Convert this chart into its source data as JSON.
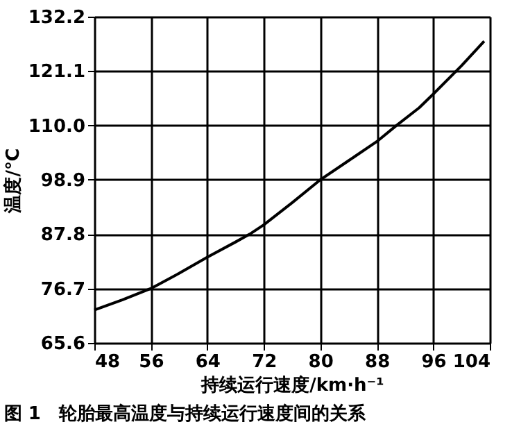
{
  "chart_data": {
    "type": "line",
    "xlabel": "持续运行速度/km·h⁻¹",
    "ylabel": "温度/℃",
    "annotations": [
      "图 1　轮胎最高温度与持续运行速度间的关系"
    ],
    "x": [
      48,
      52,
      56,
      60,
      64,
      68,
      70,
      72,
      76,
      80,
      84,
      88,
      90.8,
      94,
      96,
      100,
      103.2
    ],
    "series": [
      {
        "color": "#000000",
        "values": [
          72.3,
          74.4,
          76.7,
          79.8,
          83.1,
          86.2,
          87.8,
          89.7,
          94.2,
          98.9,
          102.8,
          106.7,
          110.0,
          113.6,
          116.4,
          122.2,
          127.2
        ]
      }
    ],
    "xlim": [
      48,
      104
    ],
    "xticks": [
      48,
      56,
      64,
      72,
      80,
      88,
      96,
      104
    ],
    "ylim": [
      65.6,
      132.2
    ],
    "yticks": [
      {
        "value": 65.6,
        "label": "65.6"
      },
      {
        "value": 76.7,
        "label": "76.7"
      },
      {
        "value": 87.8,
        "label": "87.8"
      },
      {
        "value": 98.9,
        "label": "98.9"
      },
      {
        "value": 110.0,
        "label": "110.0"
      },
      {
        "value": 121.1,
        "label": "121.1"
      },
      {
        "value": 132.2,
        "label": "132.2"
      }
    ],
    "grid": true,
    "marker": "none",
    "line_style": "solid"
  }
}
